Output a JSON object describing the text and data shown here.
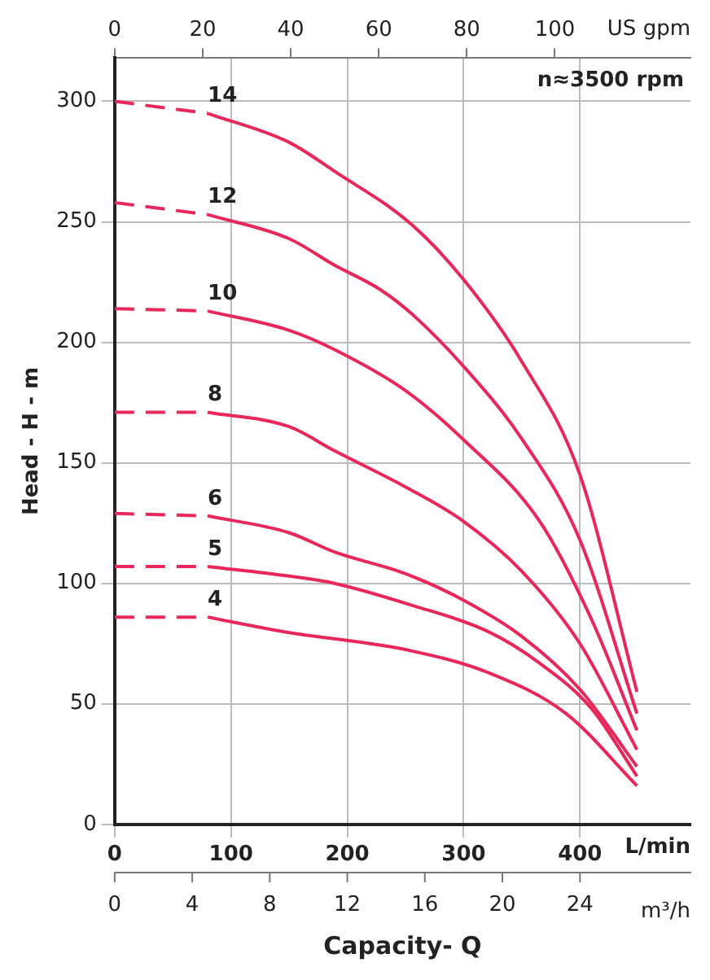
{
  "chart_data": {
    "type": "line",
    "xlabel": "L/min",
    "ylabel": "Head - H - m",
    "x2label": "US gpm",
    "annotations": [
      "n≈3500 rpm",
      "m³/h",
      "Capacity- Q",
      "0",
      "4",
      "8",
      "12",
      "16",
      "20",
      "24"
    ],
    "xlim": [
      0,
      495
    ],
    "xticks": [
      0,
      100,
      200,
      300,
      400
    ],
    "x2lim": [
      0,
      130.8
    ],
    "x2ticks": [
      0,
      20,
      40,
      60,
      80,
      100
    ],
    "ylim": [
      0,
      318
    ],
    "yticks": [
      0,
      50,
      100,
      150,
      200,
      250,
      300
    ],
    "grid": true,
    "legend": false,
    "marker": "none",
    "line_style": "solid",
    "series": [
      {
        "color": "#e8285a",
        "line_style": "dashed",
        "x": [
          0,
          80
        ],
        "values": [
          300,
          295
        ]
      },
      {
        "name": "14",
        "color": "#e8285a",
        "x": [
          80,
          150,
          189,
          255,
          300,
          350,
          400,
          449
        ],
        "values": [
          295,
          283,
          271,
          249,
          226,
          192,
          145,
          55
        ]
      },
      {
        "color": "#e8285a",
        "line_style": "dashed",
        "x": [
          0,
          80
        ],
        "values": [
          258,
          253
        ]
      },
      {
        "name": "12",
        "color": "#e8285a",
        "x": [
          80,
          150,
          189,
          228,
          255,
          300,
          350,
          400,
          449
        ],
        "values": [
          253,
          243,
          232,
          222,
          212,
          190,
          160,
          118,
          46
        ]
      },
      {
        "color": "#e8285a",
        "line_style": "dashed",
        "x": [
          0,
          80
        ],
        "values": [
          214,
          213
        ]
      },
      {
        "name": "10",
        "color": "#e8285a",
        "x": [
          80,
          150,
          189,
          250,
          299,
          365,
          410,
          449
        ],
        "values": [
          213,
          205,
          197,
          180,
          160,
          126,
          85,
          39
        ]
      },
      {
        "color": "#e8285a",
        "line_style": "dashed",
        "x": [
          0,
          80
        ],
        "values": [
          171,
          171
        ]
      },
      {
        "name": "8",
        "color": "#e8285a",
        "x": [
          80,
          150,
          189,
          250,
          299,
          350,
          400,
          449
        ],
        "values": [
          171,
          165,
          155,
          140,
          126,
          105,
          75,
          31
        ]
      },
      {
        "color": "#e8285a",
        "line_style": "dashed",
        "x": [
          0,
          80
        ],
        "values": [
          129,
          128
        ]
      },
      {
        "name": "6",
        "color": "#e8285a",
        "x": [
          80,
          150,
          189,
          250,
          300,
          350,
          400,
          449
        ],
        "values": [
          128,
          121,
          113,
          104,
          93,
          78,
          56,
          24
        ]
      },
      {
        "color": "#e8285a",
        "line_style": "dashed",
        "x": [
          0,
          80
        ],
        "values": [
          107,
          107
        ]
      },
      {
        "name": "5",
        "color": "#e8285a",
        "x": [
          80,
          150,
          189,
          255,
          321,
          365,
          410,
          449
        ],
        "values": [
          107,
          103,
          100,
          91,
          80,
          67,
          48,
          20
        ]
      },
      {
        "color": "#e8285a",
        "line_style": "dashed",
        "x": [
          0,
          80
        ],
        "values": [
          86,
          86
        ]
      },
      {
        "name": "4",
        "color": "#e8285a",
        "x": [
          80,
          145,
          255,
          321,
          388,
          449
        ],
        "values": [
          86,
          80,
          72,
          63,
          46,
          16
        ]
      }
    ]
  }
}
